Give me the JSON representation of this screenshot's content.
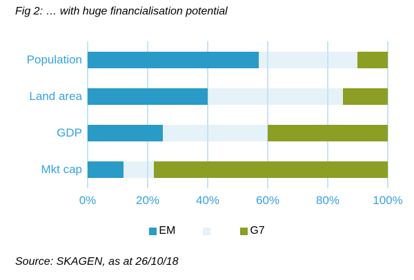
{
  "title": "Fig 2: … with huge financialisation potential",
  "source": "Source: SKAGEN, as at 26/10/18",
  "colors": {
    "em_blue": "#2A9BC6",
    "other_pale_blue": "#E5F2F8",
    "g7_olive": "#8C9E24",
    "axis_label_blue": "#36A1E1",
    "gridline_blue": "#C7E3F3",
    "text_black": "#000000",
    "background": "#FFFFFF"
  },
  "chart_data": {
    "type": "bar",
    "orientation": "horizontal",
    "stacked": true,
    "grid": true,
    "legend_position": "bottom",
    "title": "Fig 2: … with huge financialisation potential",
    "xlabel": "",
    "ylabel": "",
    "xlim": [
      0,
      100
    ],
    "x_ticks": [
      "0%",
      "20%",
      "40%",
      "60%",
      "80%",
      "100%"
    ],
    "categories": [
      "Population",
      "Land area",
      "GDP",
      "Mkt cap"
    ],
    "series": [
      {
        "name": "EM",
        "color": "#2A9BC6",
        "values": [
          57,
          40,
          25,
          12
        ]
      },
      {
        "name": "",
        "color": "#E5F2F8",
        "values": [
          33,
          45,
          35,
          10
        ]
      },
      {
        "name": "G7",
        "color": "#8C9E24",
        "values": [
          10,
          15,
          40,
          78
        ]
      }
    ]
  }
}
